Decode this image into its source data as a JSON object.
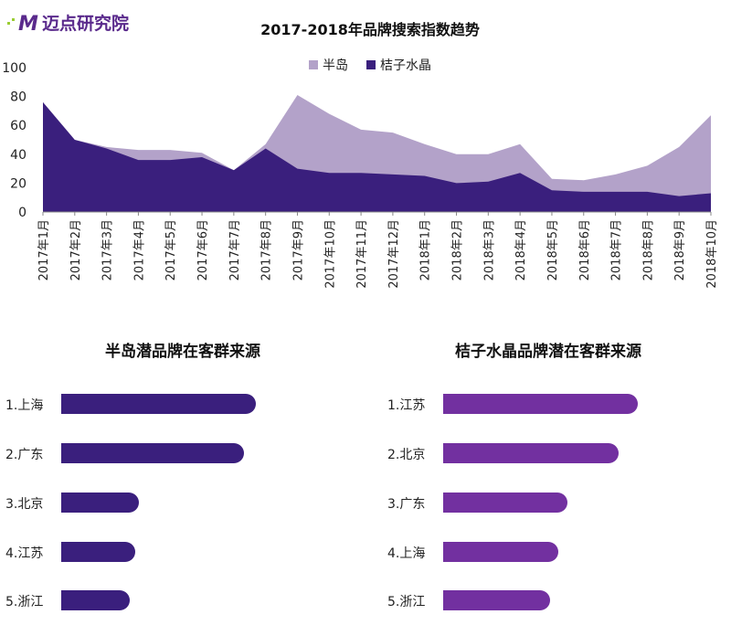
{
  "logo": {
    "text": "迈点研究院",
    "mark": "M"
  },
  "colors": {
    "bandao": "#b3a2c9",
    "juzi": "#3a1f7d",
    "bar_left": "#3a1f7d",
    "bar_right": "#7230a0"
  },
  "chart_data": [
    {
      "type": "area",
      "title": "2017-2018年品牌搜索指数趋势",
      "legend_position": "top",
      "categories": [
        "2017年1月",
        "2017年2月",
        "2017年3月",
        "2017年4月",
        "2017年5月",
        "2017年6月",
        "2017年7月",
        "2017年8月",
        "2017年9月",
        "2017年10月",
        "2017年11月",
        "2017年12月",
        "2018年1月",
        "2018年2月",
        "2018年3月",
        "2018年4月",
        "2018年5月",
        "2018年6月",
        "2018年7月",
        "2018年8月",
        "2018年9月",
        "2018年10月"
      ],
      "ylim": [
        0,
        100
      ],
      "yticks": [
        0,
        20,
        40,
        60,
        80,
        100
      ],
      "grid": false,
      "series": [
        {
          "name": "半岛",
          "values": [
            76,
            50,
            45,
            43,
            43,
            41,
            29,
            47,
            81,
            68,
            57,
            55,
            47,
            40,
            40,
            47,
            23,
            22,
            26,
            32,
            45,
            67
          ]
        },
        {
          "name": "桔子水晶",
          "values": [
            76,
            50,
            44,
            36,
            36,
            38,
            29,
            44,
            30,
            27,
            27,
            26,
            25,
            20,
            21,
            27,
            15,
            14,
            14,
            14,
            11,
            13
          ]
        }
      ]
    },
    {
      "type": "bar",
      "orientation": "horizontal",
      "title": "半岛潜品牌在客群来源",
      "categories": [
        "1.上海",
        "2.广东",
        "3.北京",
        "4.江苏",
        "5.浙江"
      ],
      "values": [
        100,
        94,
        40,
        38,
        35
      ]
    },
    {
      "type": "bar",
      "orientation": "horizontal",
      "title": "桔子水晶品牌潜在客群来源",
      "categories": [
        "1.江苏",
        "2.北京",
        "3.广东",
        "4.上海",
        "5.浙江"
      ],
      "values": [
        100,
        90,
        64,
        59,
        55
      ]
    }
  ]
}
